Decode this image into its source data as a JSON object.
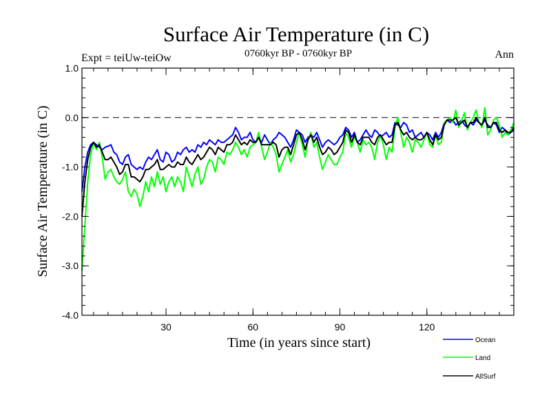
{
  "header": {
    "title": "Surface Air Temperature (in C)",
    "expt": "Expt = teiUw-teiOw",
    "period": "0760kyr BP - 0760kyr BP",
    "season": "Ann"
  },
  "colors": {
    "ocean": "#0000ff",
    "land": "#00ff00",
    "allsurf": "#000000",
    "axis": "#000000"
  },
  "chart_data": {
    "type": "line",
    "title": "Surface Air Temperature (in C)",
    "xlabel": "Time (in years since start)",
    "ylabel": "Surface Air Temperature (in C)",
    "xlim": [
      1,
      150
    ],
    "ylim": [
      -4.0,
      1.0
    ],
    "x_ticks": [
      30,
      60,
      90,
      120
    ],
    "x_tick_labels": [
      "30",
      "60",
      "90",
      "120"
    ],
    "y_ticks": [
      1.0,
      0.0,
      -1.0,
      -2.0,
      -3.0,
      -4.0
    ],
    "y_tick_labels": [
      "1.0",
      "0.0",
      "-1.0",
      "-2.0",
      "-3.0",
      "-4.0"
    ],
    "reference_line": 0.0,
    "legend_position": "bottom-right",
    "legend": [
      "Ocean",
      "Land",
      "AllSurf"
    ],
    "x_start": 1,
    "series": [
      {
        "name": "Ocean",
        "color": "#0000ff",
        "values": [
          -1.5,
          -1.0,
          -0.7,
          -0.55,
          -0.5,
          -0.55,
          -0.6,
          -0.65,
          -0.6,
          -0.58,
          -0.55,
          -0.7,
          -0.75,
          -0.9,
          -0.95,
          -0.8,
          -0.75,
          -0.95,
          -1.0,
          -1.05,
          -1.0,
          -1.05,
          -0.9,
          -0.8,
          -0.85,
          -0.75,
          -0.65,
          -0.85,
          -0.9,
          -0.7,
          -0.75,
          -0.9,
          -0.85,
          -0.7,
          -0.75,
          -0.65,
          -0.6,
          -0.7,
          -0.65,
          -0.7,
          -0.55,
          -0.6,
          -0.5,
          -0.55,
          -0.45,
          -0.5,
          -0.55,
          -0.45,
          -0.5,
          -0.5,
          -0.45,
          -0.4,
          -0.35,
          -0.2,
          -0.3,
          -0.45,
          -0.4,
          -0.4,
          -0.3,
          -0.45,
          -0.5,
          -0.4,
          -0.5,
          -0.35,
          -0.45,
          -0.55,
          -0.45,
          -0.4,
          -0.3,
          -0.35,
          -0.4,
          -0.5,
          -0.6,
          -0.45,
          -0.25,
          -0.3,
          -0.35,
          -0.5,
          -0.4,
          -0.35,
          -0.4,
          -0.3,
          -0.45,
          -0.6,
          -0.5,
          -0.45,
          -0.5,
          -0.55,
          -0.5,
          -0.4,
          -0.35,
          -0.2,
          -0.25,
          -0.4,
          -0.3,
          -0.5,
          -0.45,
          -0.35,
          -0.25,
          -0.35,
          -0.4,
          -0.25,
          -0.3,
          -0.4,
          -0.35,
          -0.3,
          -0.4,
          -0.35,
          -0.1,
          -0.15,
          -0.2,
          -0.1,
          -0.15,
          -0.3,
          -0.25,
          -0.4,
          -0.35,
          -0.3,
          -0.4,
          -0.3,
          -0.35,
          -0.45,
          -0.3,
          -0.4,
          -0.3,
          -0.1,
          -0.05,
          -0.1,
          -0.05,
          -0.15,
          -0.1,
          -0.05,
          -0.15,
          -0.2,
          -0.1,
          -0.15,
          -0.05,
          -0.1,
          -0.15,
          -0.05,
          -0.15,
          -0.2,
          -0.1,
          -0.15,
          -0.3,
          -0.2,
          -0.25,
          -0.35,
          -0.3,
          -0.25
        ]
      },
      {
        "name": "Land",
        "color": "#00ff00",
        "values": [
          -3.1,
          -2.2,
          -1.3,
          -0.75,
          -0.5,
          -0.65,
          -0.5,
          -0.8,
          -1.25,
          -1.1,
          -1.05,
          -1.2,
          -1.3,
          -1.35,
          -1.25,
          -1.1,
          -1.5,
          -1.6,
          -1.45,
          -1.55,
          -1.8,
          -1.6,
          -1.3,
          -1.5,
          -1.2,
          -1.4,
          -1.1,
          -1.35,
          -1.2,
          -1.5,
          -1.3,
          -1.2,
          -1.4,
          -1.2,
          -1.3,
          -1.5,
          -1.0,
          -1.2,
          -1.4,
          -1.15,
          -1.0,
          -1.35,
          -1.25,
          -1.0,
          -0.85,
          -0.9,
          -1.1,
          -0.8,
          -0.85,
          -0.95,
          -0.7,
          -0.75,
          -0.65,
          -0.5,
          -0.6,
          -0.75,
          -0.65,
          -0.8,
          -0.6,
          -0.55,
          -0.5,
          -0.3,
          -0.6,
          -0.85,
          -0.7,
          -0.5,
          -0.6,
          -0.75,
          -1.1,
          -0.95,
          -0.8,
          -0.65,
          -0.9,
          -0.75,
          -0.5,
          -0.3,
          -0.55,
          -0.8,
          -0.45,
          -0.3,
          -0.6,
          -0.5,
          -0.8,
          -1.05,
          -0.9,
          -0.75,
          -0.85,
          -0.95,
          -0.95,
          -0.8,
          -0.7,
          -0.3,
          -0.4,
          -0.6,
          -0.4,
          -0.5,
          -0.7,
          -0.45,
          -0.55,
          -0.5,
          -0.6,
          -0.85,
          -0.5,
          -0.35,
          -0.55,
          -0.85,
          -0.6,
          -0.7,
          -0.2,
          0.0,
          -0.3,
          -0.6,
          -0.4,
          -0.5,
          -0.7,
          -0.45,
          -0.5,
          -0.6,
          -0.45,
          -0.3,
          -0.55,
          -0.6,
          -0.35,
          -0.55,
          -0.5,
          -0.1,
          -0.05,
          0.0,
          -0.1,
          0.15,
          -0.2,
          -0.05,
          0.1,
          -0.25,
          -0.1,
          0.0,
          0.15,
          -0.1,
          -0.2,
          0.2,
          -0.35,
          -0.25,
          -0.05,
          0.0,
          -0.15,
          -0.4,
          -0.3,
          -0.35,
          -0.25,
          -0.1
        ]
      },
      {
        "name": "AllSurf",
        "color": "#000000",
        "values": [
          -2.0,
          -1.3,
          -0.85,
          -0.6,
          -0.5,
          -0.6,
          -0.55,
          -0.7,
          -0.85,
          -0.85,
          -0.8,
          -0.9,
          -1.0,
          -1.15,
          -1.1,
          -0.95,
          -0.95,
          -1.2,
          -1.2,
          -1.25,
          -1.3,
          -1.2,
          -1.05,
          -1.05,
          -1.0,
          -0.95,
          -0.85,
          -1.05,
          -1.05,
          -1.0,
          -0.95,
          -1.0,
          -1.0,
          -0.9,
          -0.95,
          -0.95,
          -0.8,
          -0.9,
          -0.95,
          -0.85,
          -0.75,
          -0.85,
          -0.8,
          -0.7,
          -0.6,
          -0.65,
          -0.75,
          -0.6,
          -0.65,
          -0.7,
          -0.55,
          -0.55,
          -0.5,
          -0.35,
          -0.45,
          -0.55,
          -0.5,
          -0.55,
          -0.45,
          -0.5,
          -0.5,
          -0.4,
          -0.55,
          -0.55,
          -0.55,
          -0.55,
          -0.5,
          -0.55,
          -0.8,
          -0.65,
          -0.6,
          -0.6,
          -0.75,
          -0.55,
          -0.35,
          -0.3,
          -0.45,
          -0.65,
          -0.45,
          -0.35,
          -0.5,
          -0.4,
          -0.6,
          -0.75,
          -0.7,
          -0.6,
          -0.65,
          -0.75,
          -0.7,
          -0.6,
          -0.5,
          -0.25,
          -0.3,
          -0.5,
          -0.35,
          -0.5,
          -0.55,
          -0.4,
          -0.4,
          -0.4,
          -0.5,
          -0.55,
          -0.4,
          -0.35,
          -0.45,
          -0.55,
          -0.5,
          -0.5,
          -0.15,
          -0.1,
          -0.25,
          -0.35,
          -0.3,
          -0.4,
          -0.45,
          -0.4,
          -0.45,
          -0.45,
          -0.4,
          -0.3,
          -0.45,
          -0.55,
          -0.35,
          -0.45,
          -0.4,
          -0.15,
          -0.05,
          -0.05,
          -0.05,
          0.0,
          -0.15,
          -0.1,
          -0.05,
          -0.2,
          -0.1,
          -0.1,
          0.0,
          -0.1,
          -0.15,
          0.0,
          -0.2,
          -0.2,
          -0.1,
          -0.1,
          -0.25,
          -0.3,
          -0.25,
          -0.3,
          -0.3,
          -0.2
        ]
      }
    ]
  }
}
